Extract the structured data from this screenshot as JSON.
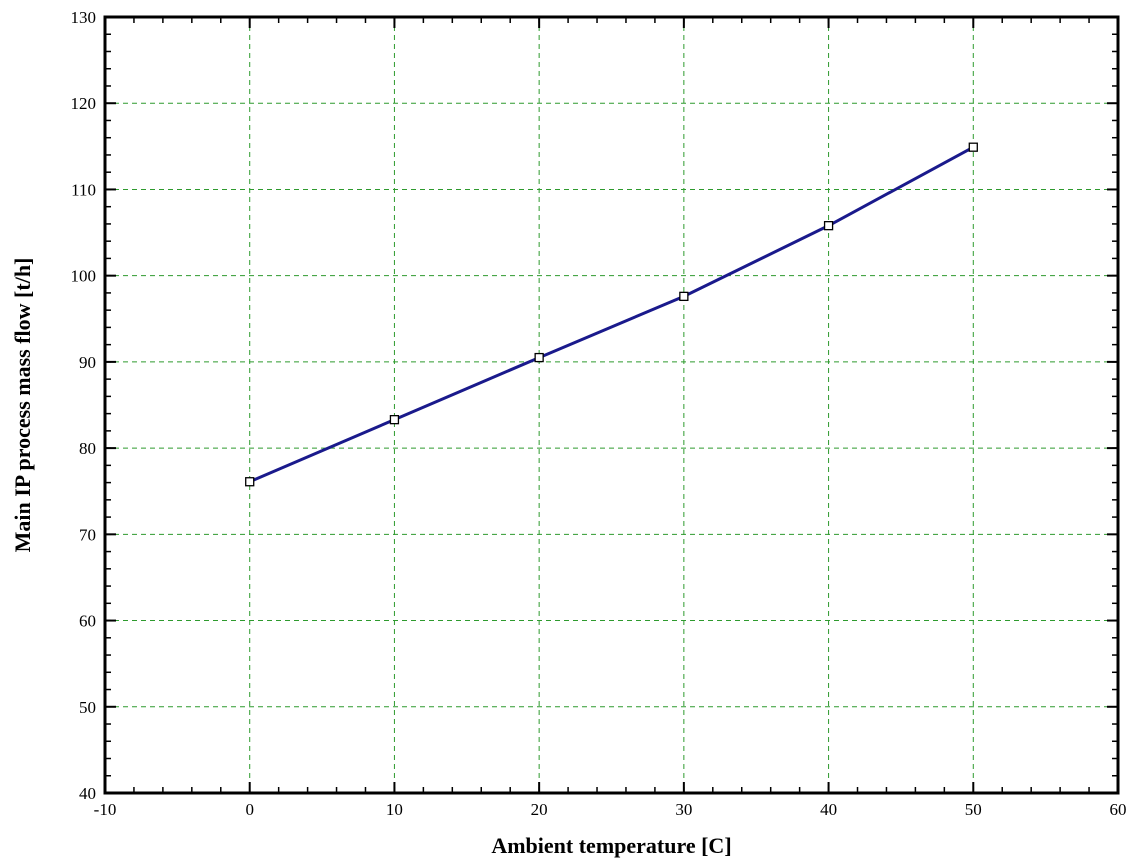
{
  "chart_data": {
    "type": "line",
    "title": "",
    "xlabel": "Ambient temperature [C]",
    "ylabel": "Main IP process mass flow [t/h]",
    "xlim": [
      -10,
      60
    ],
    "ylim": [
      40,
      130
    ],
    "xticks": [
      -10,
      0,
      10,
      20,
      30,
      40,
      50,
      60
    ],
    "yticks": [
      40,
      50,
      60,
      70,
      80,
      90,
      100,
      110,
      120,
      130
    ],
    "grid": true,
    "legend": "none",
    "series": [
      {
        "x": [
          0,
          10,
          20,
          30,
          40,
          50
        ],
        "y": [
          76.1,
          83.3,
          90.5,
          97.6,
          105.8,
          114.9
        ],
        "marker": "square",
        "color": "#1a1a8c"
      }
    ]
  },
  "colors": {
    "grid": "#2e9a2e",
    "line": "#1a1a8c",
    "frame": "#000000",
    "marker_fill": "#ffffff"
  }
}
